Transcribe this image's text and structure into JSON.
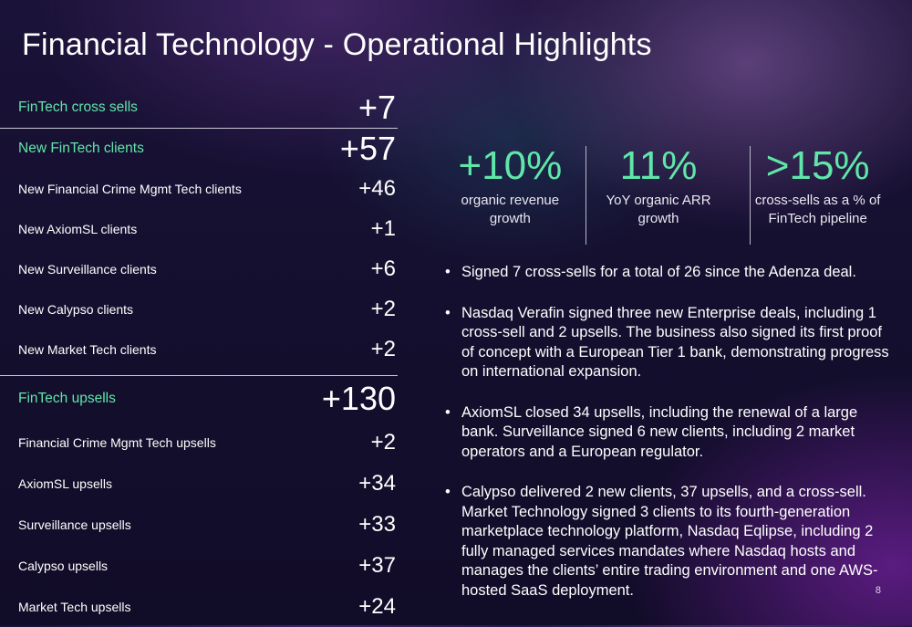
{
  "title": "Financial Technology - Operational Highlights",
  "left_table": {
    "cross_sells": {
      "label": "FinTech cross sells",
      "value": "+7"
    },
    "new_clients": {
      "label": "New FinTech clients",
      "value": "+57",
      "items": [
        {
          "label": "New Financial Crime Mgmt Tech clients",
          "value": "+46"
        },
        {
          "label": "New AxiomSL clients",
          "value": "+1"
        },
        {
          "label": "New Surveillance clients",
          "value": "+6"
        },
        {
          "label": "New Calypso clients",
          "value": "+2"
        },
        {
          "label": "New Market Tech clients",
          "value": "+2"
        }
      ]
    },
    "upsells": {
      "label": "FinTech upsells",
      "value": "+130",
      "items": [
        {
          "label": "Financial Crime Mgmt Tech upsells",
          "value": "+2"
        },
        {
          "label": "AxiomSL upsells",
          "value": "+34"
        },
        {
          "label": "Surveillance upsells",
          "value": "+33"
        },
        {
          "label": "Calypso upsells",
          "value": "+37"
        },
        {
          "label": "Market Tech upsells",
          "value": "+24"
        }
      ]
    }
  },
  "stats": [
    {
      "value": "+10%",
      "line1": "organic revenue",
      "line2": "growth"
    },
    {
      "value": "11%",
      "line1": "YoY organic ARR",
      "line2": "growth"
    },
    {
      "value": ">15%",
      "line1": "cross-sells as a % of",
      "line2": "FinTech pipeline"
    }
  ],
  "bullets": [
    "Signed 7 cross-sells for a total of 26 since the Adenza deal.",
    "Nasdaq Verafin signed three new Enterprise deals, including 1 cross-sell and 2 upsells. The business also signed its first proof of concept with a European Tier 1 bank, demonstrating progress on international expansion.",
    "AxiomSL closed 34 upsells, including the renewal of a large bank. Surveillance signed 6 new clients, including 2 market operators and a European regulator.",
    "Calypso delivered 2 new clients, 37 upsells, and a cross-sell. Market Technology signed 3 clients to its fourth-generation marketplace technology platform, Nasdaq Eqlipse, including 2 fully managed services mandates where Nasdaq hosts and manages the clients’ entire trading environment and one AWS-hosted SaaS deployment."
  ],
  "bullet_symbol": "•",
  "page_number": "8",
  "colors": {
    "accent": "#5fe6a8",
    "text": "#ffffff",
    "background": "#140f2e"
  }
}
